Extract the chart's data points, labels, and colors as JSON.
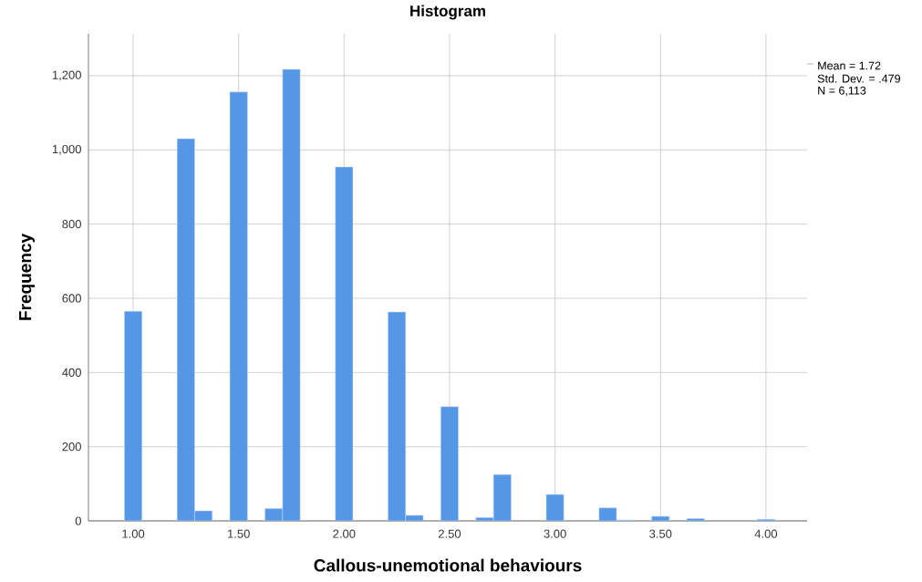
{
  "chart_data": {
    "type": "histogram",
    "title": "Histogram",
    "xlabel": "Callous-unemotional behaviours",
    "ylabel": "Frequency",
    "bins": [
      0.9583,
      1.0417,
      1.125,
      1.2083,
      1.2917,
      1.375,
      1.4583,
      1.5417,
      1.625,
      1.7083,
      1.7917,
      1.875,
      1.9583,
      2.0417,
      2.125,
      2.2083,
      2.2917,
      2.375,
      2.4583,
      2.5417,
      2.625,
      2.7083,
      2.7917,
      2.875,
      2.9583,
      3.0417,
      3.125,
      3.2083,
      3.2917,
      3.375,
      3.4583,
      3.5417,
      3.625,
      3.7083,
      3.7917,
      3.875,
      3.9583,
      4.0417
    ],
    "values": [
      565,
      0,
      0,
      1030,
      27,
      0,
      1156,
      0,
      33,
      1217,
      0,
      0,
      954,
      0,
      0,
      563,
      15,
      0,
      308,
      0,
      9,
      125,
      0,
      0,
      71,
      0,
      0,
      35,
      2,
      0,
      12,
      0,
      6,
      0,
      0,
      0,
      4
    ],
    "color": "#5596e6",
    "xlim": [
      0.788,
      4.195
    ],
    "ylim": [
      0,
      1313
    ],
    "xticks": [
      {
        "value": 1,
        "label": "1.00"
      },
      {
        "value": 1.5,
        "label": "1.50"
      },
      {
        "value": 2,
        "label": "2.00"
      },
      {
        "value": 2.5,
        "label": "2.50"
      },
      {
        "value": 3,
        "label": "3.00"
      },
      {
        "value": 3.5,
        "label": "3.50"
      },
      {
        "value": 4,
        "label": "4.00"
      }
    ],
    "yticks": [
      0,
      200,
      400,
      600,
      800,
      {
        "value": 1000,
        "label": "1,000"
      },
      {
        "value": 1200,
        "label": "1,200"
      }
    ],
    "grid": true,
    "annotations": [
      "Mean = 1.72",
      "Std. Dev. = .479",
      "N = 6,113"
    ]
  }
}
